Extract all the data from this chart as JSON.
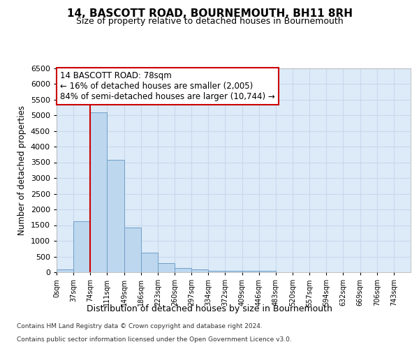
{
  "title": "14, BASCOTT ROAD, BOURNEMOUTH, BH11 8RH",
  "subtitle": "Size of property relative to detached houses in Bournemouth",
  "xlabel": "Distribution of detached houses by size in Bournemouth",
  "ylabel": "Number of detached properties",
  "bin_labels": [
    "0sqm",
    "37sqm",
    "74sqm",
    "111sqm",
    "149sqm",
    "186sqm",
    "223sqm",
    "260sqm",
    "297sqm",
    "334sqm",
    "372sqm",
    "409sqm",
    "446sqm",
    "483sqm",
    "520sqm",
    "557sqm",
    "594sqm",
    "632sqm",
    "669sqm",
    "706sqm",
    "743sqm"
  ],
  "bar_heights": [
    80,
    1620,
    5080,
    3580,
    1420,
    620,
    300,
    130,
    80,
    55,
    42,
    40,
    35,
    0,
    0,
    0,
    0,
    0,
    0,
    0,
    0
  ],
  "bar_color": "#bdd7ee",
  "bar_edge_color": "#70a0c8",
  "grid_color": "#c8d8ec",
  "background_color": "#ddeaf8",
  "vline_color": "#cc0000",
  "annotation_text": "14 BASCOTT ROAD: 78sqm\n← 16% of detached houses are smaller (2,005)\n84% of semi-detached houses are larger (10,744) →",
  "annotation_box_color": "#cc0000",
  "ylim": [
    0,
    6500
  ],
  "yticks": [
    0,
    500,
    1000,
    1500,
    2000,
    2500,
    3000,
    3500,
    4000,
    4500,
    5000,
    5500,
    6000,
    6500
  ],
  "footer_line1": "Contains HM Land Registry data © Crown copyright and database right 2024.",
  "footer_line2": "Contains public sector information licensed under the Open Government Licence v3.0."
}
